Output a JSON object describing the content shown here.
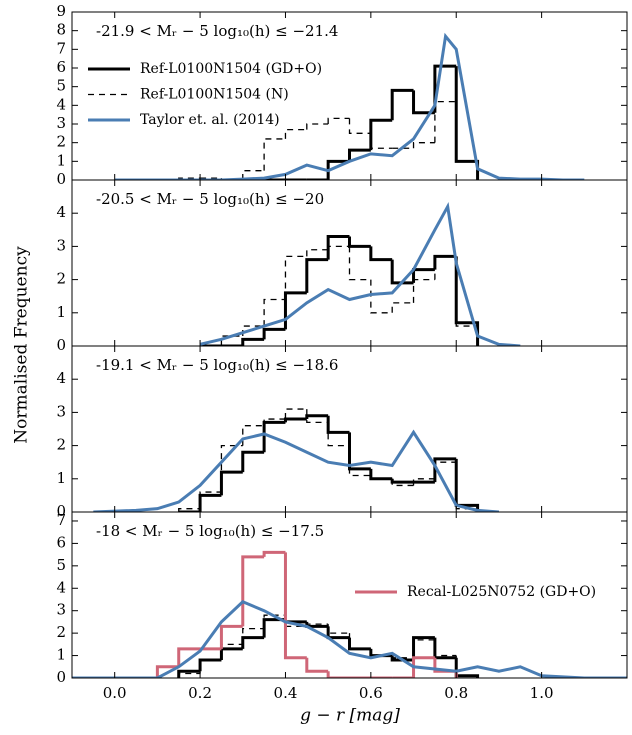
{
  "figure": {
    "xlabel": "g − r [mag]",
    "ylabel": "Normalised Frequency"
  },
  "chart_data": [
    {
      "type": "histogram",
      "title": "-21.9 < Mᵣ − 5 log₁₀(h) ≤ −21.4",
      "xlim": [
        -0.1,
        1.2
      ],
      "ylim": [
        0,
        9
      ],
      "yticks": [
        0,
        1,
        2,
        3,
        4,
        5,
        6,
        7,
        8,
        9
      ],
      "xticks": [
        {
          "value": 0,
          "label": "0.0"
        },
        0.2,
        0.4,
        0.6,
        0.8,
        {
          "value": 1,
          "label": "1.0"
        }
      ],
      "xtick_labels": false,
      "legend": "upper left",
      "series": [
        {
          "name": "Ref-L0100N1504 (GD+O)",
          "color": "#000000",
          "style": "solid",
          "bins": [
            0.15,
            0.2,
            0.25,
            0.3,
            0.35,
            0.4,
            0.45,
            0.5,
            0.55,
            0.6,
            0.65,
            0.7,
            0.75,
            0.8,
            0.85
          ],
          "values": [
            0,
            0,
            0,
            0,
            0,
            0,
            0,
            1.0,
            1.6,
            3.2,
            4.8,
            3.6,
            6.1,
            1.0
          ]
        },
        {
          "name": "Ref-L0100N1504 (N)",
          "color": "#000000",
          "style": "dashed",
          "bins": [
            0.15,
            0.2,
            0.25,
            0.3,
            0.35,
            0.4,
            0.45,
            0.5,
            0.55,
            0.6,
            0.65,
            0.7,
            0.75,
            0.8,
            0.85
          ],
          "values": [
            0.1,
            0.1,
            0,
            0.5,
            2.2,
            2.7,
            3.0,
            3.3,
            2.5,
            1.7,
            1.7,
            2.0,
            4.2,
            1.0
          ]
        },
        {
          "name": "Taylor et. al. (2014)",
          "color": "#4a7db3",
          "style": "line",
          "x": [
            0,
            0.1,
            0.2,
            0.25,
            0.3,
            0.35,
            0.4,
            0.45,
            0.5,
            0.55,
            0.6,
            0.65,
            0.7,
            0.75,
            0.775,
            0.8,
            0.85,
            0.9,
            0.95,
            1.0,
            1.05,
            1.1
          ],
          "values": [
            0,
            0,
            0,
            0,
            0.05,
            0.1,
            0.3,
            0.8,
            0.5,
            1.0,
            1.4,
            1.3,
            2.2,
            4.0,
            7.7,
            7.0,
            0.6,
            0.1,
            0.05,
            0.05,
            0,
            0
          ]
        }
      ]
    },
    {
      "type": "histogram",
      "title": "-20.5 < Mᵣ − 5 log₁₀(h) ≤ −20",
      "xlim": [
        -0.1,
        1.2
      ],
      "ylim": [
        0,
        5
      ],
      "yticks": [
        0,
        1,
        2,
        3,
        4
      ],
      "xticks": [
        {
          "value": 0,
          "label": "0.0"
        },
        0.2,
        0.4,
        0.6,
        0.8,
        {
          "value": 1,
          "label": "1.0"
        }
      ],
      "xtick_labels": false,
      "series": [
        {
          "color": "#000000",
          "style": "solid",
          "bins": [
            0.2,
            0.25,
            0.3,
            0.35,
            0.4,
            0.45,
            0.5,
            0.55,
            0.6,
            0.65,
            0.7,
            0.75,
            0.8,
            0.85
          ],
          "values": [
            0,
            0,
            0.2,
            0.5,
            1.6,
            2.6,
            3.3,
            3.0,
            2.6,
            1.9,
            2.3,
            2.7,
            0.7
          ]
        },
        {
          "color": "#000000",
          "style": "dashed",
          "bins": [
            0.2,
            0.25,
            0.3,
            0.35,
            0.4,
            0.45,
            0.5,
            0.55,
            0.6,
            0.65,
            0.7,
            0.75,
            0.8,
            0.85
          ],
          "values": [
            0,
            0.3,
            0.6,
            1.4,
            2.7,
            2.9,
            3.0,
            2.0,
            1.0,
            1.3,
            2.0,
            2.7,
            0.6
          ]
        },
        {
          "color": "#4a7db3",
          "style": "line",
          "x": [
            0.2,
            0.25,
            0.3,
            0.35,
            0.4,
            0.45,
            0.5,
            0.55,
            0.6,
            0.65,
            0.7,
            0.75,
            0.78,
            0.8,
            0.85,
            0.9,
            0.95
          ],
          "values": [
            0.05,
            0.2,
            0.4,
            0.6,
            0.8,
            1.3,
            1.7,
            1.4,
            1.55,
            1.6,
            2.3,
            3.5,
            4.2,
            2.5,
            0.3,
            0.05,
            0
          ]
        }
      ]
    },
    {
      "type": "histogram",
      "title": "-19.1 < Mᵣ − 5 log₁₀(h) ≤ −18.6",
      "xlim": [
        -0.1,
        1.2
      ],
      "ylim": [
        0,
        5
      ],
      "yticks": [
        0,
        1,
        2,
        3,
        4
      ],
      "xticks": [
        {
          "value": 0,
          "label": "0.0"
        },
        0.2,
        0.4,
        0.6,
        0.8,
        {
          "value": 1,
          "label": "1.0"
        }
      ],
      "xtick_labels": false,
      "series": [
        {
          "color": "#000000",
          "style": "solid",
          "bins": [
            0.15,
            0.2,
            0.25,
            0.3,
            0.35,
            0.4,
            0.45,
            0.5,
            0.55,
            0.6,
            0.65,
            0.7,
            0.75,
            0.8,
            0.85
          ],
          "values": [
            0,
            0.5,
            1.2,
            1.8,
            2.7,
            2.8,
            2.9,
            2.4,
            1.3,
            1.0,
            0.9,
            0.9,
            1.6,
            0.2
          ]
        },
        {
          "color": "#000000",
          "style": "dashed",
          "bins": [
            0.15,
            0.2,
            0.25,
            0.3,
            0.35,
            0.4,
            0.45,
            0.5,
            0.55,
            0.6,
            0.65,
            0.7,
            0.75,
            0.8,
            0.85
          ],
          "values": [
            0.1,
            0.6,
            2.0,
            2.6,
            2.8,
            3.1,
            2.7,
            2.0,
            1.1,
            1.0,
            0.8,
            1.0,
            1.5,
            0.1
          ]
        },
        {
          "color": "#4a7db3",
          "style": "line",
          "x": [
            -0.05,
            0.05,
            0.1,
            0.15,
            0.2,
            0.25,
            0.3,
            0.35,
            0.4,
            0.45,
            0.5,
            0.55,
            0.6,
            0.65,
            0.7,
            0.75,
            0.8,
            0.85,
            0.9
          ],
          "values": [
            0,
            0.05,
            0.1,
            0.3,
            0.8,
            1.5,
            2.2,
            2.35,
            2.1,
            1.8,
            1.5,
            1.4,
            1.5,
            1.4,
            2.4,
            1.4,
            0.2,
            0.05,
            0
          ]
        }
      ]
    },
    {
      "type": "histogram",
      "title": "-18 < Mᵣ − 5 log₁₀(h) ≤ −17.5",
      "xlim": [
        -0.1,
        1.2
      ],
      "ylim": [
        0,
        7.4
      ],
      "yticks": [
        0,
        1,
        2,
        3,
        4,
        5,
        6,
        7
      ],
      "xticks": [
        {
          "value": 0,
          "label": "0.0"
        },
        0.2,
        0.4,
        0.6,
        0.8,
        {
          "value": 1,
          "label": "1.0"
        }
      ],
      "xtick_labels": true,
      "legend": "center right",
      "series": [
        {
          "color": "#000000",
          "style": "solid",
          "bins": [
            0.15,
            0.2,
            0.25,
            0.3,
            0.35,
            0.4,
            0.45,
            0.5,
            0.55,
            0.6,
            0.65,
            0.7,
            0.75,
            0.8,
            0.85
          ],
          "values": [
            0.3,
            0.8,
            1.3,
            1.8,
            2.6,
            2.5,
            2.3,
            1.8,
            1.3,
            1.0,
            0.8,
            1.8,
            0.9,
            0.1
          ]
        },
        {
          "color": "#000000",
          "style": "dashed",
          "bins": [
            0.15,
            0.2,
            0.25,
            0.3,
            0.35,
            0.4,
            0.45,
            0.5,
            0.55,
            0.6,
            0.65,
            0.7,
            0.75,
            0.8,
            0.85
          ],
          "values": [
            0.2,
            0.8,
            1.5,
            2.2,
            2.8,
            2.3,
            2.4,
            2.0,
            1.3,
            1.0,
            0.9,
            1.7,
            1.0,
            0.1
          ]
        },
        {
          "name": "Recal-L025N0752 (GD+O)",
          "color": "#cf6677",
          "style": "solid",
          "bins": [
            0.1,
            0.15,
            0.2,
            0.25,
            0.3,
            0.35,
            0.4,
            0.45,
            0.5,
            0.55,
            0.6,
            0.65,
            0.7,
            0.75,
            0.8
          ],
          "values": [
            0.5,
            1.3,
            1.3,
            2.3,
            5.4,
            5.6,
            0.9,
            0.3,
            0,
            0,
            0,
            0,
            0.9,
            0.3
          ]
        },
        {
          "color": "#4a7db3",
          "style": "line",
          "x": [
            -0.1,
            0.1,
            0.15,
            0.2,
            0.25,
            0.3,
            0.35,
            0.4,
            0.45,
            0.5,
            0.55,
            0.6,
            0.65,
            0.7,
            0.75,
            0.8,
            0.85,
            0.9,
            0.95,
            1.0,
            1.05,
            1.1,
            1.2
          ],
          "values": [
            0,
            0,
            0.5,
            1.2,
            2.5,
            3.4,
            3.0,
            2.5,
            2.3,
            1.8,
            1.1,
            0.9,
            1.1,
            0.5,
            0.4,
            0.3,
            0.5,
            0.3,
            0.5,
            0.1,
            0.05,
            0,
            0
          ]
        }
      ]
    }
  ]
}
